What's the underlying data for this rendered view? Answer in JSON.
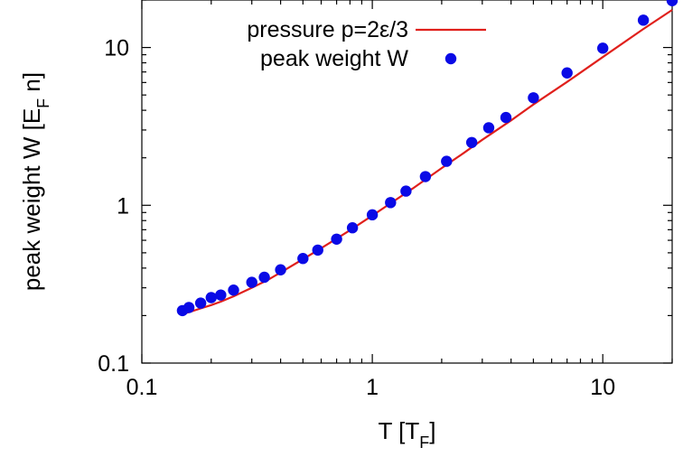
{
  "chart_data": {
    "type": "scatter",
    "title": "",
    "xlabel": "T [T_F]",
    "ylabel": "peak weight W [E_F n]",
    "xscale": "log",
    "yscale": "log",
    "xlim": [
      0.1,
      20
    ],
    "ylim": [
      0.1,
      20
    ],
    "x_ticks": [
      0.1,
      1,
      10
    ],
    "y_ticks": [
      0.1,
      1,
      10
    ],
    "x_tick_labels": [
      "0.1",
      "1",
      "10"
    ],
    "y_tick_labels": [
      "0.1",
      "1",
      "10"
    ],
    "grid": false,
    "legend_position": "top-left",
    "series": [
      {
        "name": "pressure p=2ε/3",
        "kind": "line",
        "color": "#e0201c",
        "x": [
          0.15,
          0.16,
          0.18,
          0.2,
          0.22,
          0.25,
          0.3,
          0.35,
          0.4,
          0.5,
          0.6,
          0.7,
          0.8,
          1.0,
          1.2,
          1.5,
          2.0,
          2.5,
          3.0,
          4.0,
          5.0,
          7.0,
          10.0,
          15.0,
          20.0
        ],
        "y": [
          0.205,
          0.21,
          0.222,
          0.233,
          0.245,
          0.265,
          0.3,
          0.335,
          0.375,
          0.455,
          0.535,
          0.615,
          0.695,
          0.86,
          1.03,
          1.28,
          1.72,
          2.15,
          2.6,
          3.45,
          4.35,
          6.05,
          8.7,
          13.1,
          17.3
        ]
      },
      {
        "name": "peak weight W",
        "kind": "points",
        "color": "#0a0ae6",
        "x": [
          0.15,
          0.16,
          0.18,
          0.2,
          0.22,
          0.25,
          0.3,
          0.34,
          0.4,
          0.5,
          0.58,
          0.7,
          0.82,
          1.0,
          1.2,
          1.4,
          1.7,
          2.1,
          2.7,
          3.2,
          3.8,
          5.0,
          7.0,
          10.0,
          15.0,
          20.0
        ],
        "y": [
          0.215,
          0.225,
          0.24,
          0.26,
          0.27,
          0.29,
          0.325,
          0.35,
          0.39,
          0.46,
          0.52,
          0.61,
          0.72,
          0.87,
          1.04,
          1.23,
          1.52,
          1.9,
          2.5,
          3.1,
          3.6,
          4.8,
          6.9,
          9.9,
          14.9,
          19.8
        ]
      }
    ]
  }
}
